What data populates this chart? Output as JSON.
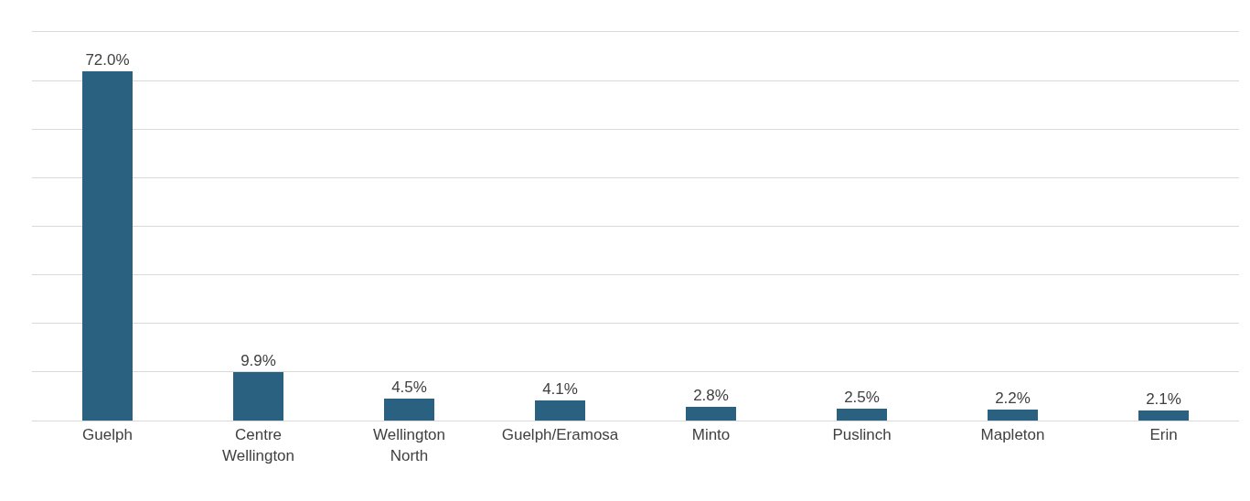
{
  "chart_data": {
    "type": "bar",
    "categories": [
      "Guelph",
      "Centre Wellington",
      "Wellington North",
      "Guelph/Eramosa",
      "Minto",
      "Puslinch",
      "Mapleton",
      "Erin"
    ],
    "values": [
      72.0,
      9.9,
      4.5,
      4.1,
      2.8,
      2.5,
      2.2,
      2.1
    ],
    "value_labels": [
      "72.0%",
      "9.9%",
      "4.5%",
      "4.1%",
      "2.8%",
      "2.5%",
      "2.2%",
      "2.1%"
    ],
    "color": "#2a6180",
    "ylim": [
      0,
      80
    ],
    "yticks": [
      {
        "value": 0,
        "label": null
      },
      {
        "value": 10,
        "label": null
      },
      {
        "value": 20,
        "label": null
      },
      {
        "value": 30,
        "label": null
      },
      {
        "value": 40,
        "label": null
      },
      {
        "value": 50,
        "label": null
      },
      {
        "value": 60,
        "label": null
      },
      {
        "value": 70,
        "label": null
      },
      {
        "value": 80,
        "label": null
      }
    ],
    "grid": "y",
    "legend": false,
    "tick_labels": "x"
  }
}
